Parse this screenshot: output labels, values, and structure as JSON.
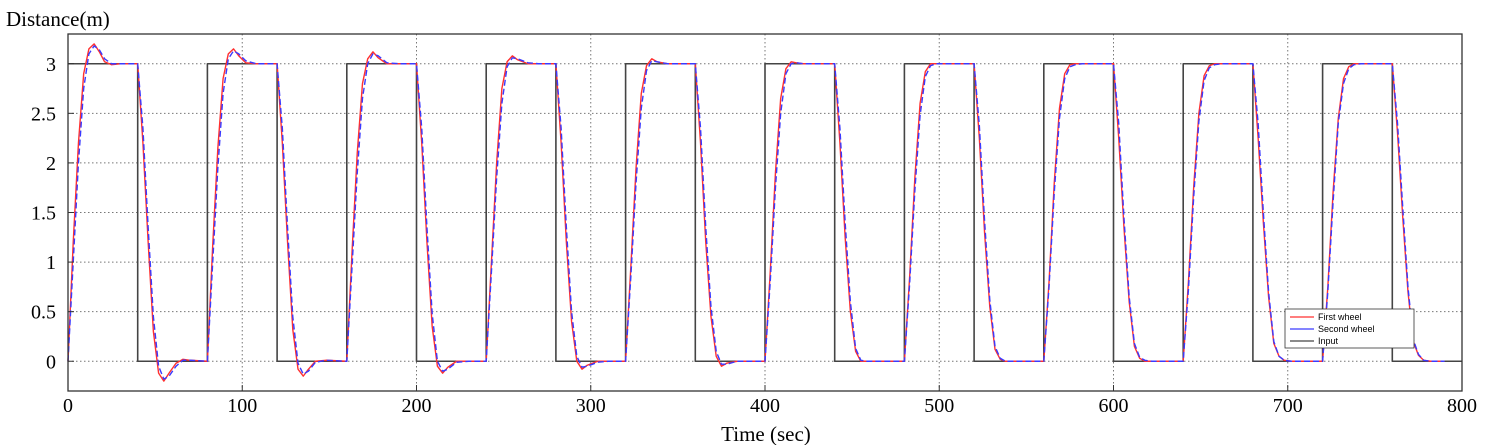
{
  "chart_data": {
    "type": "line",
    "xlabel": "Time (sec)",
    "ylabel": "Distance(m)",
    "xlim": [
      0,
      800
    ],
    "ylim": [
      -0.3,
      3.3
    ],
    "xticks": [
      0,
      100,
      200,
      300,
      400,
      500,
      600,
      700,
      800
    ],
    "yticks": [
      0,
      0.5,
      1,
      1.5,
      2,
      2.5,
      3
    ],
    "xtick_labels": [
      "0",
      "100",
      "200",
      "300",
      "400",
      "500",
      "600",
      "700",
      "800"
    ],
    "ytick_labels": [
      "0",
      "0.5",
      "1",
      "1.5",
      "2",
      "2.5",
      "3"
    ],
    "grid": true,
    "grid_style": "dotted",
    "legend_position": "lower-right",
    "colors": {
      "first_wheel": "#ff3030",
      "second_wheel": "#3a3aff",
      "input": "#444444"
    },
    "series": [
      {
        "name": "First wheel",
        "style": "solid",
        "x": [
          0,
          3,
          6,
          9,
          12,
          15,
          18,
          21,
          25,
          30,
          40,
          43,
          46,
          49,
          52,
          55,
          58,
          62,
          66,
          70,
          80,
          83,
          86,
          89,
          92,
          95,
          98,
          102,
          108,
          120,
          123,
          126,
          129,
          132,
          135,
          138,
          142,
          148,
          160,
          163,
          166,
          169,
          172,
          175,
          178,
          183,
          190,
          200,
          203,
          206,
          209,
          212,
          215,
          218,
          223,
          230,
          240,
          243,
          246,
          249,
          252,
          255,
          258,
          264,
          270,
          280,
          283,
          286,
          289,
          292,
          295,
          298,
          304,
          310,
          320,
          323,
          326,
          329,
          332,
          335,
          338,
          344,
          350,
          360,
          363,
          366,
          369,
          372,
          375,
          378,
          384,
          390,
          400,
          403,
          406,
          409,
          412,
          415,
          418,
          422,
          430,
          440,
          443,
          446,
          449,
          452,
          455,
          458,
          462,
          470,
          480,
          483,
          486,
          489,
          492,
          495,
          498,
          502,
          510,
          520,
          523,
          526,
          529,
          532,
          535,
          538,
          542,
          550,
          560,
          563,
          566,
          569,
          572,
          575,
          578,
          582,
          590,
          600,
          603,
          606,
          609,
          612,
          615,
          618,
          622,
          630,
          640,
          643,
          646,
          649,
          652,
          655,
          658,
          662,
          670,
          680,
          683,
          686,
          689,
          692,
          695,
          698,
          702,
          710,
          720,
          723,
          726,
          729,
          732,
          735,
          738,
          742,
          750,
          760,
          763,
          766,
          769,
          772,
          775,
          778,
          782,
          790
        ],
        "y": [
          0,
          1.2,
          2.2,
          2.9,
          3.15,
          3.2,
          3.12,
          3.02,
          2.99,
          3,
          3,
          2.2,
          1.2,
          0.3,
          -0.12,
          -0.2,
          -0.12,
          -0.02,
          0.02,
          0.01,
          0,
          1.15,
          2.15,
          2.85,
          3.1,
          3.15,
          3.08,
          3.01,
          3,
          3,
          2.2,
          1.2,
          0.32,
          -0.08,
          -0.15,
          -0.08,
          0,
          0.01,
          0,
          1.1,
          2.1,
          2.8,
          3.05,
          3.12,
          3.06,
          3,
          3,
          3,
          2.2,
          1.2,
          0.35,
          -0.05,
          -0.12,
          -0.06,
          0,
          0,
          0,
          1,
          2,
          2.75,
          3.02,
          3.08,
          3.04,
          3,
          3,
          3,
          2.2,
          1.2,
          0.4,
          0,
          -0.08,
          -0.04,
          0,
          0,
          0,
          0.95,
          1.95,
          2.7,
          2.98,
          3.05,
          3.02,
          3,
          3,
          3,
          2.2,
          1.2,
          0.45,
          0.05,
          -0.05,
          -0.02,
          0,
          0,
          0,
          0.9,
          1.9,
          2.65,
          2.95,
          3.02,
          3.01,
          3,
          3,
          3,
          2.2,
          1.25,
          0.5,
          0.1,
          0,
          0,
          0,
          0,
          0,
          0.85,
          1.85,
          2.6,
          2.92,
          3,
          3,
          3,
          3,
          3,
          2.25,
          1.3,
          0.55,
          0.12,
          0.02,
          0,
          0,
          0,
          0,
          0.8,
          1.8,
          2.55,
          2.9,
          2.99,
          3,
          3,
          3,
          3,
          2.25,
          1.35,
          0.6,
          0.15,
          0.03,
          0,
          0,
          0,
          0,
          0.8,
          1.75,
          2.5,
          2.88,
          2.98,
          3,
          3,
          3,
          3,
          2.25,
          1.4,
          0.65,
          0.18,
          0.05,
          0.01,
          0,
          0,
          0,
          0.75,
          1.7,
          2.45,
          2.85,
          2.97,
          3,
          3,
          3,
          3,
          2.3,
          1.45,
          0.7,
          0.2,
          0.06,
          0.01,
          0,
          0
        ]
      },
      {
        "name": "Second wheel",
        "style": "dashed",
        "x": [
          0,
          3,
          6,
          9,
          12,
          15,
          18,
          21,
          25,
          30,
          40,
          43,
          46,
          49,
          52,
          55,
          58,
          62,
          66,
          70,
          80,
          83,
          86,
          89,
          92,
          95,
          98,
          102,
          108,
          120,
          123,
          126,
          129,
          132,
          135,
          138,
          142,
          148,
          160,
          163,
          166,
          169,
          172,
          175,
          178,
          183,
          190,
          200,
          203,
          206,
          209,
          212,
          215,
          218,
          223,
          230,
          240,
          243,
          246,
          249,
          252,
          255,
          258,
          264,
          270,
          280,
          283,
          286,
          289,
          292,
          295,
          298,
          304,
          310,
          320,
          323,
          326,
          329,
          332,
          335,
          338,
          344,
          350,
          360,
          363,
          366,
          369,
          372,
          375,
          378,
          384,
          390,
          400,
          403,
          406,
          409,
          412,
          415,
          418,
          422,
          430,
          440,
          443,
          446,
          449,
          452,
          455,
          458,
          462,
          470,
          480,
          483,
          486,
          489,
          492,
          495,
          498,
          502,
          510,
          520,
          523,
          526,
          529,
          532,
          535,
          538,
          542,
          550,
          560,
          563,
          566,
          569,
          572,
          575,
          578,
          582,
          590,
          600,
          603,
          606,
          609,
          612,
          615,
          618,
          622,
          630,
          640,
          643,
          646,
          649,
          652,
          655,
          658,
          662,
          670,
          680,
          683,
          686,
          689,
          692,
          695,
          698,
          702,
          710,
          720,
          723,
          726,
          729,
          732,
          735,
          738,
          742,
          750,
          760,
          763,
          766,
          769,
          772,
          775,
          778,
          782,
          790
        ],
        "y": [
          0,
          1,
          2,
          2.75,
          3.1,
          3.18,
          3.14,
          3.05,
          3,
          3,
          3,
          2.35,
          1.35,
          0.45,
          -0.05,
          -0.18,
          -0.15,
          -0.05,
          0.01,
          0.01,
          0,
          0.98,
          1.95,
          2.7,
          3.05,
          3.13,
          3.1,
          3.03,
          3,
          3,
          2.35,
          1.35,
          0.45,
          -0.02,
          -0.13,
          -0.1,
          -0.01,
          0.01,
          0,
          0.95,
          1.9,
          2.65,
          3,
          3.1,
          3.08,
          3.01,
          3,
          3,
          2.35,
          1.35,
          0.48,
          0,
          -0.1,
          -0.08,
          -0.01,
          0,
          0,
          0.9,
          1.85,
          2.6,
          2.97,
          3.06,
          3.05,
          3.01,
          3,
          3,
          2.35,
          1.35,
          0.5,
          0.05,
          -0.06,
          -0.05,
          -0.01,
          0,
          0,
          0.85,
          1.8,
          2.55,
          2.93,
          3.03,
          3.02,
          3,
          3,
          3,
          2.35,
          1.35,
          0.55,
          0.1,
          -0.03,
          -0.03,
          0,
          0,
          0,
          0.8,
          1.75,
          2.5,
          2.9,
          3,
          3.01,
          3,
          3,
          3,
          2.35,
          1.4,
          0.6,
          0.13,
          0.01,
          0,
          0,
          0,
          0,
          0.78,
          1.72,
          2.48,
          2.87,
          2.98,
          3,
          3,
          3,
          3,
          2.38,
          1.42,
          0.62,
          0.15,
          0.03,
          0,
          0,
          0,
          0,
          0.75,
          1.7,
          2.45,
          2.85,
          2.97,
          2.99,
          3,
          3,
          3,
          2.4,
          1.45,
          0.65,
          0.18,
          0.04,
          0.01,
          0,
          0,
          0,
          0.72,
          1.65,
          2.42,
          2.83,
          2.96,
          2.99,
          3,
          3,
          3,
          2.4,
          1.5,
          0.7,
          0.2,
          0.05,
          0.01,
          0,
          0,
          0,
          0.7,
          1.6,
          2.4,
          2.8,
          2.95,
          2.99,
          3,
          3,
          3,
          2.4,
          1.55,
          0.75,
          0.22,
          0.07,
          0.01,
          0,
          0
        ]
      },
      {
        "name": "Input",
        "style": "step",
        "x": [
          0,
          40,
          40,
          80,
          80,
          120,
          120,
          160,
          160,
          200,
          200,
          240,
          240,
          280,
          280,
          320,
          320,
          360,
          360,
          400,
          400,
          440,
          440,
          480,
          480,
          520,
          520,
          560,
          560,
          600,
          600,
          640,
          640,
          680,
          680,
          720,
          720,
          760,
          760,
          800
        ],
        "y": [
          3,
          3,
          0,
          0,
          3,
          3,
          0,
          0,
          3,
          3,
          0,
          0,
          3,
          3,
          0,
          0,
          3,
          3,
          0,
          0,
          3,
          3,
          0,
          0,
          3,
          3,
          0,
          0,
          3,
          3,
          0,
          0,
          3,
          3,
          0,
          0,
          3,
          3,
          0,
          0
        ]
      }
    ]
  }
}
